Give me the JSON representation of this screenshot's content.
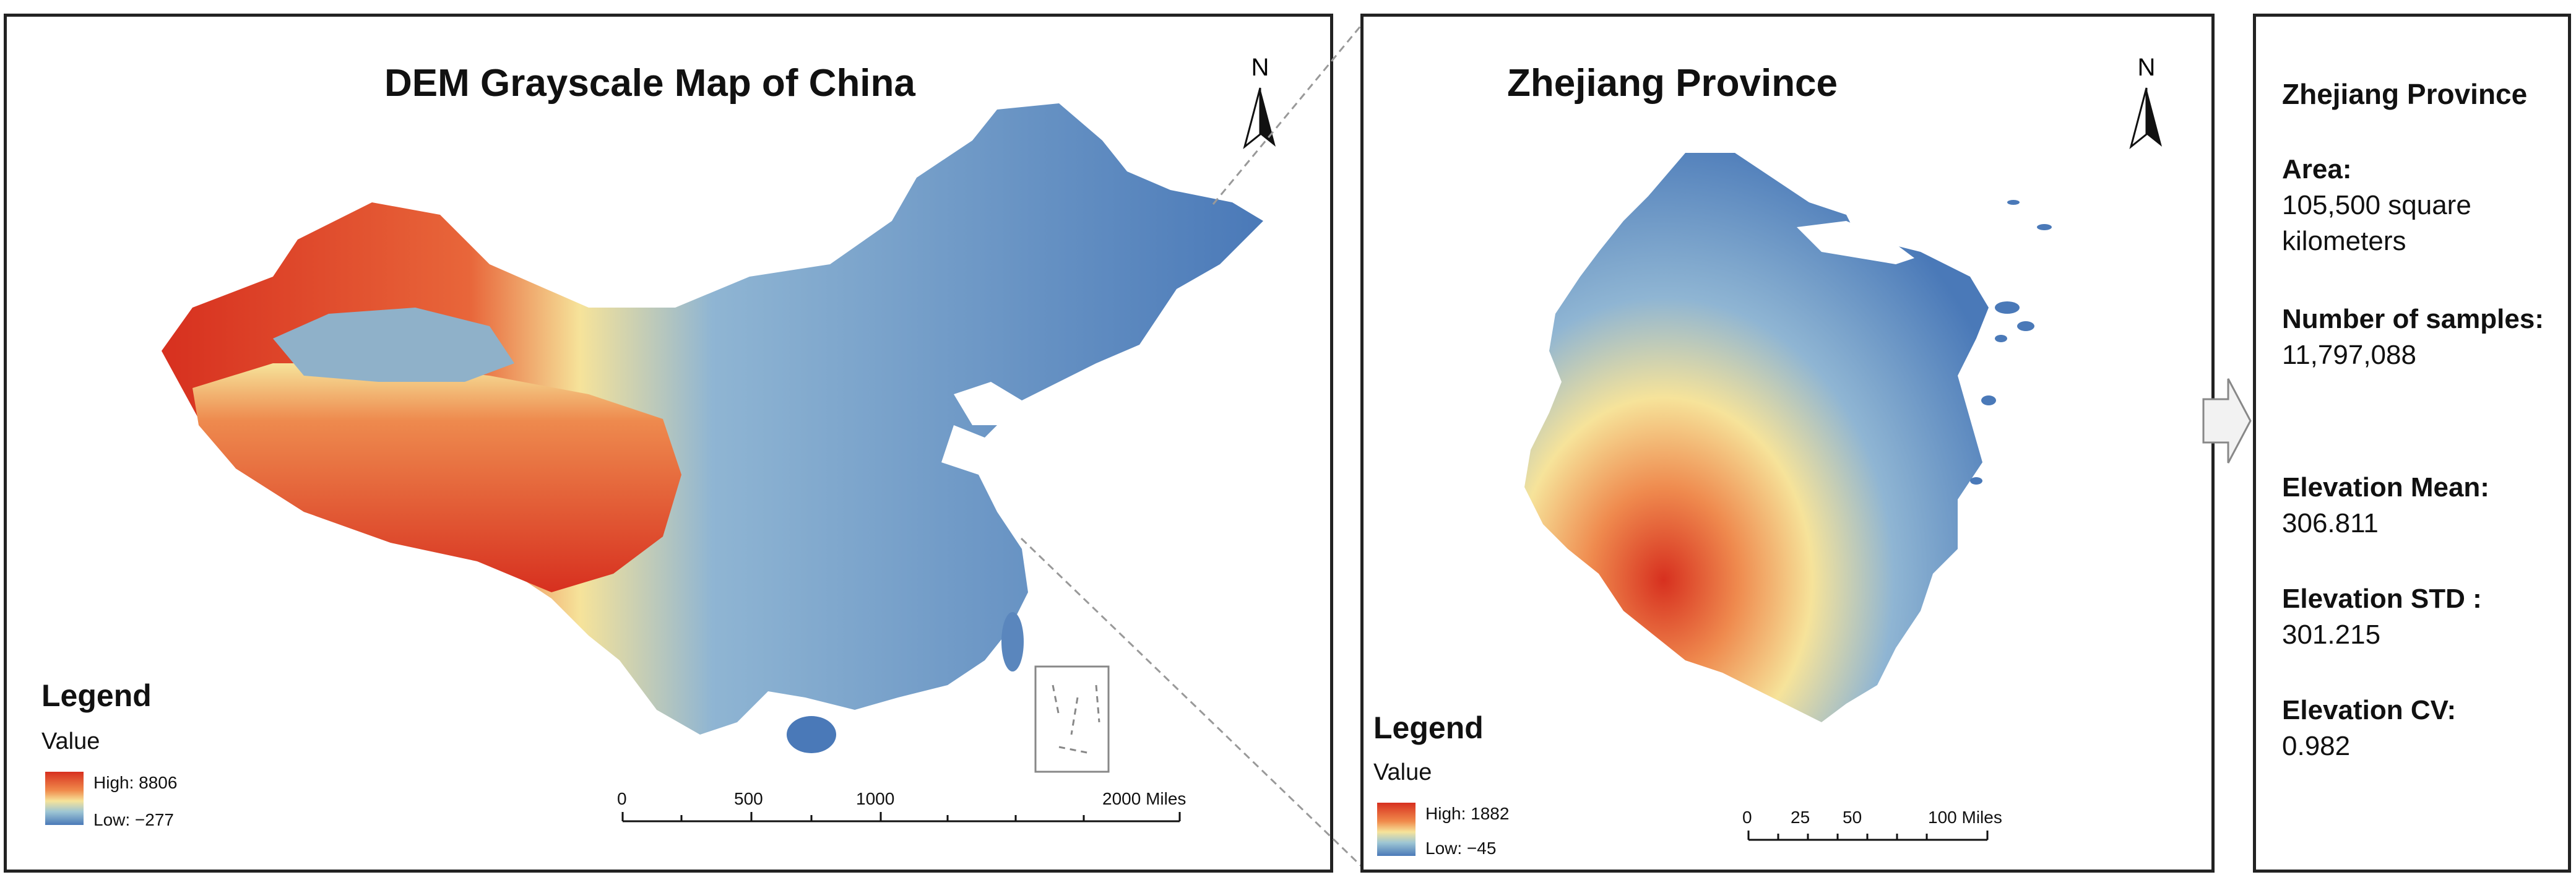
{
  "china_map": {
    "title": "DEM Grayscale Map of China",
    "north_label": "N",
    "legend": {
      "title": "Legend",
      "field": "Value",
      "high_label": "High: 8806",
      "low_label": "Low: −277"
    },
    "scale_bar": {
      "labels": [
        "0",
        "500",
        "1000",
        "2000 Miles"
      ]
    }
  },
  "zhejiang_map": {
    "title": "Zhejiang Province",
    "north_label": "N",
    "legend": {
      "title": "Legend",
      "field": "Value",
      "high_label": "High: 1882",
      "low_label": "Low: −45"
    },
    "scale_bar": {
      "labels": [
        "0",
        "25",
        "50",
        "100 Miles"
      ]
    }
  },
  "info_panel": {
    "title": "Zhejiang Province",
    "items": [
      {
        "label": "Area:",
        "value": "105,500 square kilometers"
      },
      {
        "label": "Number of samples:",
        "value": "11,797,088"
      },
      {
        "label": "Elevation Mean:",
        "value": "306.811"
      },
      {
        "label": "Elevation STD :",
        "value": "301.215"
      },
      {
        "label": "Elevation CV:",
        "value": "0.982"
      }
    ]
  },
  "colors": {
    "high": "#d7301f",
    "mid": "#f6e39a",
    "low": "#4a79b8",
    "frame": "#222222"
  }
}
